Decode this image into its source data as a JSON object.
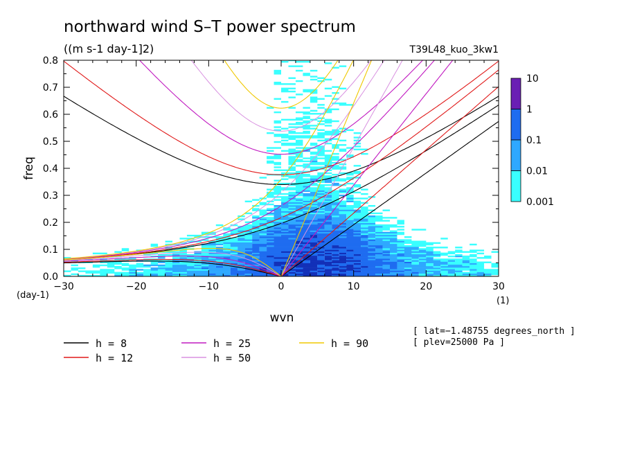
{
  "chart_data": {
    "type": "heatmap",
    "title": "northward wind S–T power spectrum",
    "subtitle": "((m s-1 day-1]2)",
    "run_label": "T39L48_kuo_3kw1",
    "xlabel": "wvn",
    "ylabel": "freq",
    "x_unit": "(1)",
    "y_unit": "(day-1)",
    "xlim": [
      -30,
      30
    ],
    "ylim": [
      0,
      0.8
    ],
    "x_ticks": [
      -30,
      -20,
      -10,
      0,
      10,
      20,
      30
    ],
    "x_tick_labels": [
      "−30",
      "−20",
      "−10",
      "0",
      "10",
      "20",
      "30"
    ],
    "y_ticks": [
      0,
      0.1,
      0.2,
      0.3,
      0.4,
      0.5,
      0.6,
      0.7,
      0.8
    ],
    "y_tick_labels": [
      "0.0",
      "0.1",
      "0.2",
      "0.3",
      "0.4",
      "0.5",
      "0.6",
      "0.7",
      "0.8"
    ],
    "colorbar": {
      "labels": [
        "10",
        "1",
        "0.1",
        "0.01",
        "0.001"
      ],
      "colors": [
        "#6a1fb4",
        "#1230b8",
        "#1e6cf0",
        "#2ea8ff",
        "#39ffff"
      ]
    },
    "dispersion_curves": [
      {
        "h": 8,
        "label": "h =  8",
        "color": "#000000"
      },
      {
        "h": 12,
        "label": "h = 12",
        "color": "#e01818"
      },
      {
        "h": 25,
        "label": "h = 25",
        "color": "#c018c0"
      },
      {
        "h": 50,
        "label": "h = 50",
        "color": "#d890e0"
      },
      {
        "h": 90,
        "label": "h = 90",
        "color": "#f0c800"
      }
    ],
    "annotations": [
      "[ lat=−1.48755 degrees_north ]",
      "[ plev=25000 Pa ]"
    ]
  }
}
